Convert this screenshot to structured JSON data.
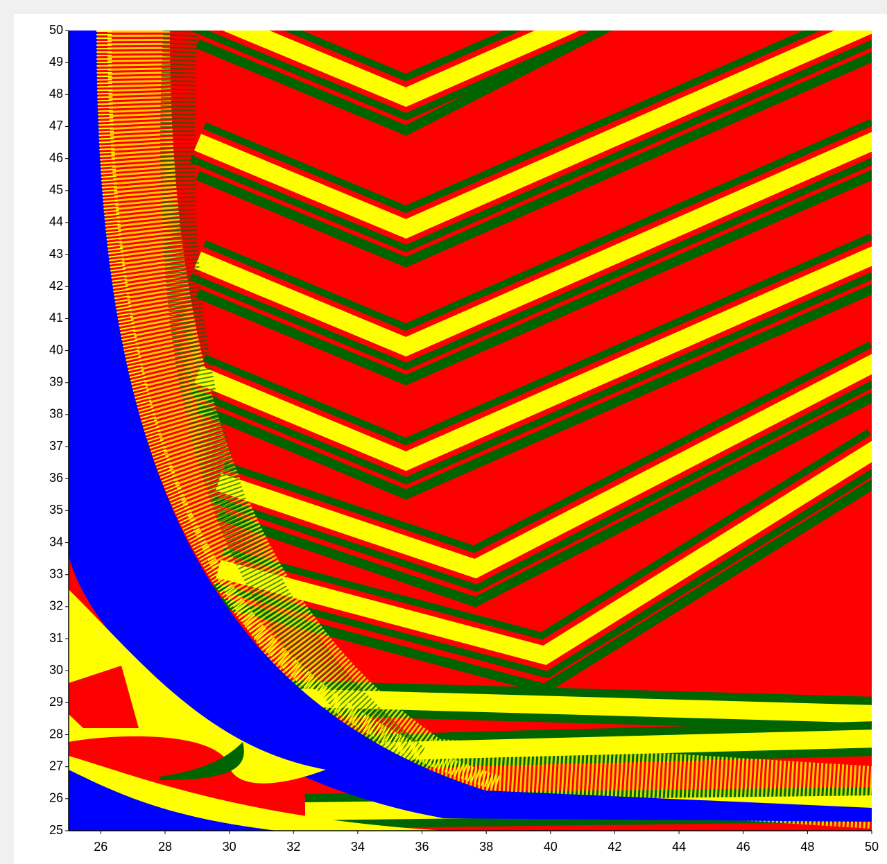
{
  "chart_data": {
    "type": "heatmap",
    "xlim": [
      25,
      50
    ],
    "ylim": [
      25,
      50
    ],
    "xticks": [
      26,
      28,
      30,
      32,
      34,
      36,
      38,
      40,
      42,
      44,
      46,
      48,
      50
    ],
    "yticks": [
      25,
      26,
      27,
      28,
      29,
      30,
      31,
      32,
      33,
      34,
      35,
      36,
      37,
      38,
      39,
      40,
      41,
      42,
      43,
      44,
      45,
      46,
      47,
      48,
      49,
      50
    ],
    "colors": [
      "#ff0000",
      "#ffff00",
      "#006400",
      "#0000ff"
    ]
  }
}
